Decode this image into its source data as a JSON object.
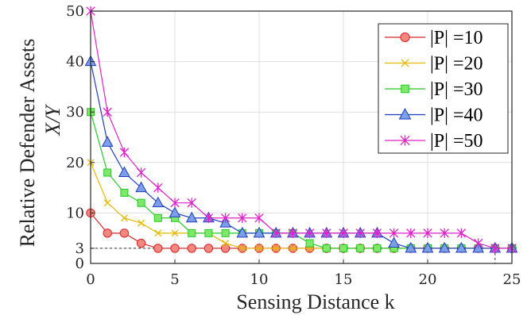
{
  "chart_data": {
    "type": "line",
    "xlabel": "Sensing Distance k",
    "ylabel_line1": "Relative Defender Assets",
    "ylabel_line2": "X/Y",
    "xlim": [
      0,
      25
    ],
    "ylim": [
      0,
      50
    ],
    "xticks": [
      "0",
      "5",
      "10",
      "15",
      "20",
      "25"
    ],
    "yticks": [
      "0",
      "3",
      "10",
      "20",
      "30",
      "40",
      "50"
    ],
    "grid": true,
    "legend_position": "top-right",
    "reference_line": {
      "y": 3,
      "x_end": 24,
      "style": "dashed"
    },
    "x": [
      0,
      1,
      2,
      3,
      4,
      5,
      6,
      7,
      8,
      9,
      10,
      11,
      12,
      13,
      14,
      15,
      16,
      17,
      18,
      19,
      20,
      21,
      22,
      23,
      24,
      25
    ],
    "series": [
      {
        "name": "|P| =10",
        "color": "#d62728",
        "fill": "#f4877f",
        "marker": "circle",
        "values": [
          10,
          6,
          6,
          4,
          3,
          3,
          3,
          3,
          3,
          3,
          3,
          3,
          3,
          3,
          3,
          3,
          3,
          3,
          3,
          3,
          3,
          3,
          3,
          3,
          3,
          3
        ]
      },
      {
        "name": "|P| =20",
        "color": "#e6b800",
        "fill": "#e6b800",
        "marker": "x",
        "values": [
          20,
          12,
          9,
          8,
          6,
          6,
          6,
          6,
          4,
          3,
          3,
          3,
          3,
          3,
          3,
          3,
          3,
          3,
          3,
          3,
          3,
          3,
          3,
          3,
          3,
          3
        ]
      },
      {
        "name": "|P| =30",
        "color": "#22cc22",
        "fill": "#7fe86b",
        "marker": "square",
        "values": [
          30,
          18,
          14,
          12,
          9,
          9,
          6,
          6,
          6,
          6,
          6,
          6,
          6,
          4,
          3,
          3,
          3,
          3,
          3,
          3,
          3,
          3,
          3,
          3,
          3,
          3
        ]
      },
      {
        "name": "|P| =40",
        "color": "#1f3fbf",
        "fill": "#7c9fe8",
        "marker": "triangle",
        "values": [
          40,
          24,
          18,
          15,
          12,
          10,
          9,
          9,
          8,
          6,
          6,
          6,
          6,
          6,
          6,
          6,
          6,
          6,
          4,
          3,
          3,
          3,
          3,
          3,
          3,
          3
        ]
      },
      {
        "name": "|P| =50",
        "color": "#e020c8",
        "fill": "#e020c8",
        "marker": "asterisk",
        "values": [
          50,
          30,
          22,
          18,
          15,
          12,
          12,
          9,
          9,
          9,
          9,
          6,
          6,
          6,
          6,
          6,
          6,
          6,
          6,
          6,
          6,
          6,
          6,
          4,
          3,
          3
        ]
      }
    ]
  }
}
